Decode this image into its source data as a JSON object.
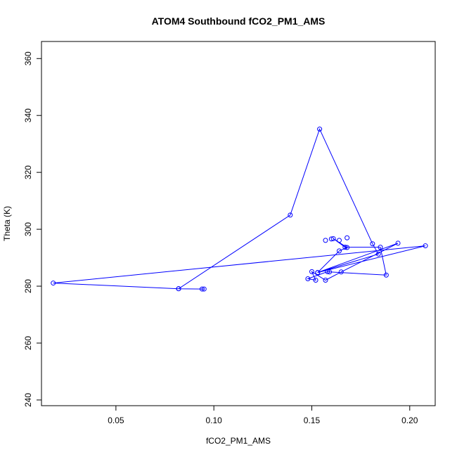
{
  "chart_data": {
    "type": "line",
    "title": "ATOM4 Southbound fCO2_PM1_AMS",
    "xlabel": "fCO2_PM1_AMS",
    "ylabel": "Theta (K)",
    "xlim": [
      0.012,
      0.213
    ],
    "ylim": [
      238,
      366
    ],
    "xticks": [
      0.05,
      0.1,
      0.15,
      0.2
    ],
    "xtick_labels": [
      "0.05",
      "0.10",
      "0.15",
      "0.20"
    ],
    "yticks": [
      240,
      260,
      280,
      300,
      320,
      340,
      360
    ],
    "ytick_labels": [
      "240",
      "260",
      "280",
      "300",
      "320",
      "340",
      "360"
    ],
    "grid": false,
    "series": [
      {
        "color": "#0000ff",
        "marker": "open-circle",
        "x": [
          0.094,
          0.095,
          0.082,
          0.139,
          0.154,
          0.181,
          0.184,
          0.153,
          0.164,
          0.168,
          0.161,
          0.167,
          0.185,
          0.188,
          0.159,
          0.158,
          0.148,
          0.152,
          0.15,
          0.157,
          0.165,
          0.194,
          0.153,
          0.208,
          0.018,
          0.082
        ],
        "y": [
          279.0,
          279.0,
          279.1,
          305.0,
          335.2,
          294.9,
          291.3,
          284.8,
          292.4,
          293.6,
          296.7,
          293.7,
          293.7,
          283.9,
          285.0,
          285.1,
          282.6,
          282.1,
          285.1,
          282.1,
          285.0,
          295.1,
          284.8,
          294.2,
          281.1,
          279.1
        ]
      }
    ],
    "extra_points": {
      "x": [
        0.157,
        0.16,
        0.164,
        0.168
      ],
      "y": [
        296.1,
        296.6,
        296.1,
        297.0
      ]
    }
  }
}
